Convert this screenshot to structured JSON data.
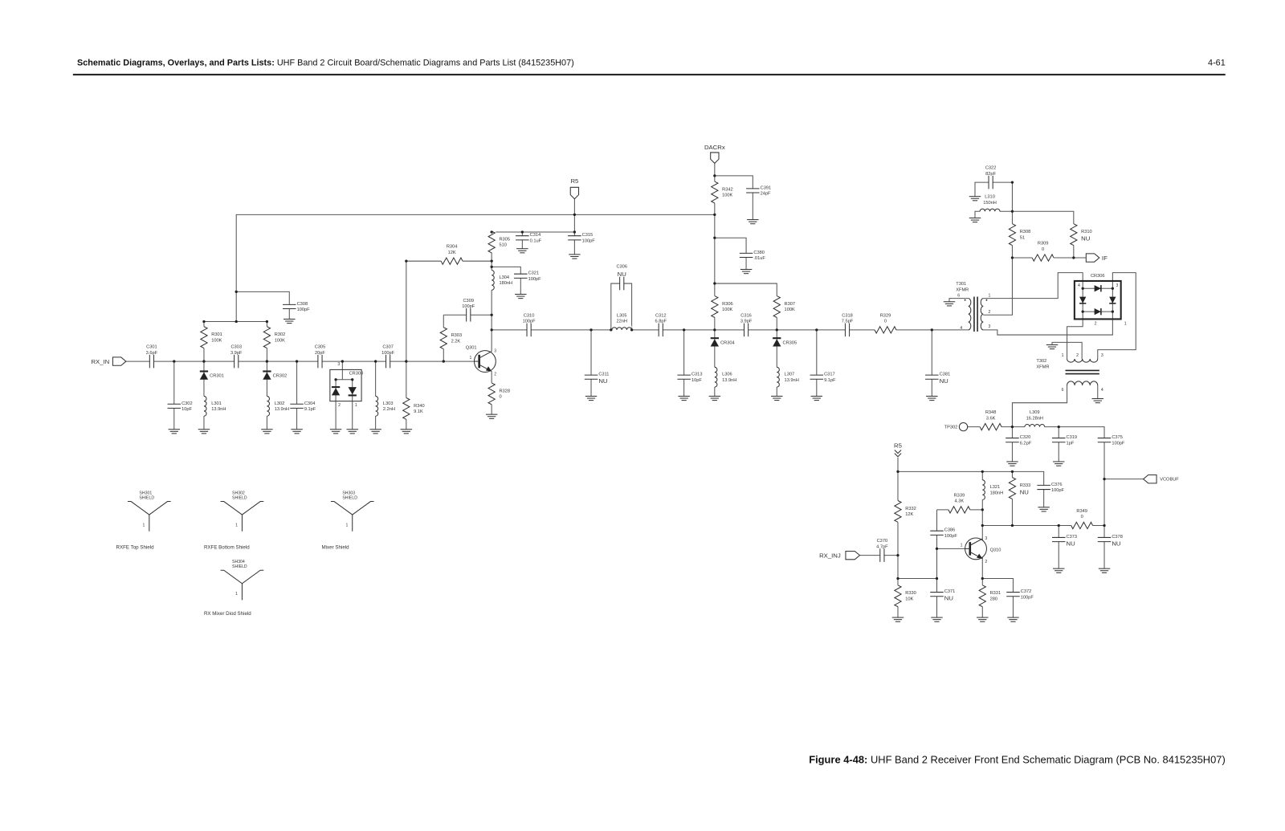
{
  "header": {
    "section_bold": "Schematic Diagrams, Overlays, and Parts Lists:",
    "section_title": "UHF Band 2 Circuit Board/Schematic Diagrams and Parts List (8415235H07)",
    "page_number": "4-61"
  },
  "caption": {
    "figure_label": "Figure 4-48:",
    "text": "UHF Band 2 Receiver Front End Schematic Diagram (PCB No. 8415235H07)"
  },
  "ports": [
    {
      "label": "RX_IN"
    },
    {
      "label": "R5"
    },
    {
      "label": "DACRx"
    },
    {
      "label": "IF"
    },
    {
      "label": "TP302"
    },
    {
      "label": "VCOBUF"
    },
    {
      "label": "R5"
    },
    {
      "label": "RX_INJ"
    }
  ],
  "components": [
    {
      "ref": "C301",
      "value": "3.6pF"
    },
    {
      "ref": "C302",
      "value": "10pF"
    },
    {
      "ref": "R301",
      "value": "100K"
    },
    {
      "ref": "CR301",
      "value": ""
    },
    {
      "ref": "L301",
      "value": "13.9nH"
    },
    {
      "ref": "C303",
      "value": "3.9pF"
    },
    {
      "ref": "R302",
      "value": "100K"
    },
    {
      "ref": "CR302",
      "value": ""
    },
    {
      "ref": "L302",
      "value": "13.9nH"
    },
    {
      "ref": "C304",
      "value": "9.1pF"
    },
    {
      "ref": "C305",
      "value": "20pF"
    },
    {
      "ref": "L303",
      "value": "2.2nH"
    },
    {
      "ref": "C307",
      "value": "100pF"
    },
    {
      "ref": "R340",
      "value": "9.1K"
    },
    {
      "ref": "C308",
      "value": "100pF"
    },
    {
      "ref": "R304",
      "value": "12K"
    },
    {
      "ref": "R303",
      "value": "2.2K"
    },
    {
      "ref": "C309",
      "value": "100pF"
    },
    {
      "ref": "R328",
      "value": "0"
    },
    {
      "ref": "R305",
      "value": "510"
    },
    {
      "ref": "L304",
      "value": "180nH"
    },
    {
      "ref": "C314",
      "value": "0.1uF"
    },
    {
      "ref": "C315",
      "value": "100pF"
    },
    {
      "ref": "C321",
      "value": "100pF"
    },
    {
      "ref": "C310",
      "value": "100pF"
    },
    {
      "ref": "C311",
      "value": "NU"
    },
    {
      "ref": "C306",
      "value": "NU"
    },
    {
      "ref": "L305",
      "value": "22nH"
    },
    {
      "ref": "C312",
      "value": "6.8pF"
    },
    {
      "ref": "C313",
      "value": "10pF"
    },
    {
      "ref": "R342",
      "value": "100K"
    },
    {
      "ref": "C391",
      "value": "24pF"
    },
    {
      "ref": "C380",
      "value": ".01uF"
    },
    {
      "ref": "R306",
      "value": "100K"
    },
    {
      "ref": "CR304",
      "value": ""
    },
    {
      "ref": "L306",
      "value": "13.9nH"
    },
    {
      "ref": "C316",
      "value": "3.9pF"
    },
    {
      "ref": "R307",
      "value": "100K"
    },
    {
      "ref": "CR305",
      "value": ""
    },
    {
      "ref": "L307",
      "value": "13.9nH"
    },
    {
      "ref": "C317",
      "value": "9.1pF"
    },
    {
      "ref": "C318",
      "value": "7.5pF"
    },
    {
      "ref": "R329",
      "value": "0"
    },
    {
      "ref": "C381",
      "value": "NU"
    },
    {
      "ref": "C322",
      "value": "82pF"
    },
    {
      "ref": "L310",
      "value": "150nH"
    },
    {
      "ref": "R308",
      "value": "51"
    },
    {
      "ref": "R310",
      "value": "NU"
    },
    {
      "ref": "R309",
      "value": "0"
    },
    {
      "ref": "R348",
      "value": "3.6K"
    },
    {
      "ref": "L309",
      "value": "16.28nH"
    },
    {
      "ref": "C320",
      "value": "6.2pF"
    },
    {
      "ref": "C319",
      "value": "1pF"
    },
    {
      "ref": "C375",
      "value": "100pF"
    },
    {
      "ref": "R332",
      "value": "12K"
    },
    {
      "ref": "C370",
      "value": "4.7pF"
    },
    {
      "ref": "R330",
      "value": "10K"
    },
    {
      "ref": "C371",
      "value": "NU"
    },
    {
      "ref": "C386",
      "value": "100pF"
    },
    {
      "ref": "R339",
      "value": "4.3K"
    },
    {
      "ref": "L321",
      "value": "180nH"
    },
    {
      "ref": "R333",
      "value": "NU"
    },
    {
      "ref": "C376",
      "value": "100pF"
    },
    {
      "ref": "R349",
      "value": "0"
    },
    {
      "ref": "C373",
      "value": "NU"
    },
    {
      "ref": "C378",
      "value": "NU"
    },
    {
      "ref": "R331",
      "value": "280"
    },
    {
      "ref": "C372",
      "value": "100pF"
    }
  ],
  "devices": [
    {
      "ref": "CR303",
      "value": "",
      "pins": [
        "3",
        "2",
        "1"
      ]
    },
    {
      "ref": "Q301",
      "value": "",
      "pins": [
        "1",
        "3",
        "2"
      ]
    },
    {
      "ref": "Q310",
      "value": "",
      "pins": [
        "1",
        "3",
        "2"
      ]
    },
    {
      "ref": "CR306",
      "value": "",
      "pins": [
        "4",
        "3",
        "2",
        "1"
      ]
    },
    {
      "ref": "T301",
      "value": "XFMR",
      "pins": [
        "6",
        "4",
        "1",
        "2",
        "3"
      ]
    },
    {
      "ref": "T302",
      "value": "XFMR",
      "pins": [
        "1",
        "2",
        "3",
        "6",
        "4"
      ]
    }
  ],
  "shields": [
    {
      "ref": "SH301",
      "value": "SHIELD",
      "pin": "1",
      "name": "RXFE Top Shield"
    },
    {
      "ref": "SH302",
      "value": "SHIELD",
      "pin": "1",
      "name": "RXFE Bottom Shield"
    },
    {
      "ref": "SH303",
      "value": "SHIELD",
      "pin": "1",
      "name": "Mixer Shield"
    },
    {
      "ref": "SH304",
      "value": "SHIELD",
      "pin": "1",
      "name": "RX Mixer Diod Shield"
    }
  ]
}
